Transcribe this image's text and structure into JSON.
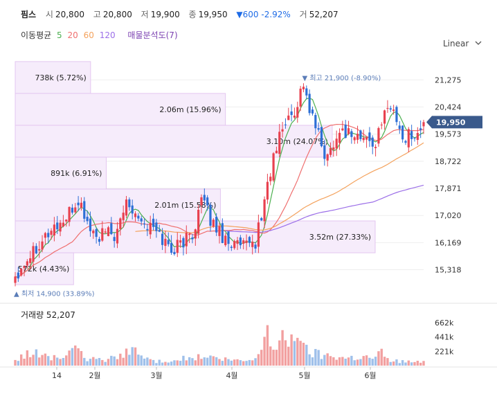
{
  "header": {
    "name": "핌스",
    "open_label": "시",
    "open": "20,800",
    "high_label": "고",
    "high": "20,800",
    "low_label": "저",
    "low": "19,900",
    "close_label": "종",
    "close": "19,950",
    "change": "▼600 -2.92%",
    "vol_label": "거",
    "volume": "52,207"
  },
  "ma_legend": {
    "label": "이동평균",
    "p5": "5",
    "p20": "20",
    "p60": "60",
    "p120": "120",
    "vp_label": "매물분석도(7)"
  },
  "scale_mode": "Linear",
  "volume_title": "거래량 52,207",
  "colors": {
    "up": "#e8414f",
    "down": "#2d6fd6",
    "ma5": "#4caf50",
    "ma20": "#ef6f6f",
    "ma60": "#f4a25d",
    "ma120": "#9b6ee8",
    "vp": "#f6ecfb"
  },
  "chart_data": {
    "type": "candlestick",
    "y_ticks": [
      "21,275",
      "20,424",
      "19,573",
      "18,722",
      "17,871",
      "17,020",
      "16,169",
      "15,318"
    ],
    "y_range": [
      14700,
      22000
    ],
    "x_labels": [
      "14",
      "2월",
      "3월",
      "4월",
      "5월",
      "6월"
    ],
    "last_price": "19,950",
    "max_annotation": "최고 21,900 (-8.90%)",
    "min_annotation": "최저 14,900 (33.89%)",
    "volume_ticks": [
      "662k",
      "441k",
      "221k"
    ],
    "volume_profile": [
      {
        "label": "738k (5.72%)",
        "low": 20850,
        "high": 21850
      },
      {
        "label": "2.06m (15.96%)",
        "low": 19850,
        "high": 20850
      },
      {
        "label": "3.10m (24.07%)",
        "low": 18850,
        "high": 19850
      },
      {
        "label": "891k (6.91%)",
        "low": 17850,
        "high": 18850
      },
      {
        "label": "2.01m (15.58%)",
        "low": 16850,
        "high": 17850
      },
      {
        "label": "3.52m (27.33%)",
        "low": 15850,
        "high": 16850
      },
      {
        "label": "572k (4.43%)",
        "low": 14850,
        "high": 15850
      }
    ],
    "anchors": [
      [
        0,
        15150
      ],
      [
        4,
        15700
      ],
      [
        8,
        16200
      ],
      [
        13,
        16650
      ],
      [
        17,
        16900
      ],
      [
        21,
        17500
      ],
      [
        24,
        16800
      ],
      [
        27,
        16300
      ],
      [
        30,
        16450
      ],
      [
        34,
        16400
      ],
      [
        37,
        17500
      ],
      [
        40,
        17200
      ],
      [
        43,
        16750
      ],
      [
        46,
        16600
      ],
      [
        49,
        16300
      ],
      [
        52,
        15950
      ],
      [
        55,
        16150
      ],
      [
        59,
        16450
      ],
      [
        62,
        17500
      ],
      [
        65,
        16900
      ],
      [
        69,
        16400
      ],
      [
        73,
        16100
      ],
      [
        77,
        16000
      ],
      [
        80,
        16200
      ],
      [
        82,
        17000
      ],
      [
        84,
        18000
      ],
      [
        86,
        18800
      ],
      [
        89,
        19800
      ],
      [
        93,
        20300
      ],
      [
        96,
        21200
      ],
      [
        98,
        20300
      ],
      [
        100,
        19800
      ],
      [
        102,
        19200
      ],
      [
        104,
        18800
      ],
      [
        106,
        19400
      ],
      [
        109,
        19700
      ],
      [
        112,
        19600
      ],
      [
        115,
        19450
      ],
      [
        118,
        19350
      ],
      [
        120,
        19300
      ],
      [
        122,
        19800
      ],
      [
        124,
        20600
      ],
      [
        126,
        20300
      ],
      [
        128,
        19700
      ],
      [
        130,
        19400
      ],
      [
        132,
        19650
      ],
      [
        134,
        19500
      ],
      [
        136,
        19950
      ]
    ],
    "vol_anchors": [
      [
        0,
        90
      ],
      [
        5,
        200
      ],
      [
        10,
        150
      ],
      [
        15,
        120
      ],
      [
        20,
        220
      ],
      [
        25,
        90
      ],
      [
        30,
        100
      ],
      [
        35,
        130
      ],
      [
        38,
        300
      ],
      [
        42,
        140
      ],
      [
        47,
        60
      ],
      [
        52,
        90
      ],
      [
        57,
        110
      ],
      [
        62,
        130
      ],
      [
        66,
        120
      ],
      [
        70,
        90
      ],
      [
        75,
        70
      ],
      [
        80,
        90
      ],
      [
        82,
        330
      ],
      [
        84,
        650
      ],
      [
        86,
        220
      ],
      [
        89,
        400
      ],
      [
        92,
        420
      ],
      [
        94,
        670
      ],
      [
        96,
        260
      ],
      [
        99,
        210
      ],
      [
        102,
        160
      ],
      [
        106,
        160
      ],
      [
        110,
        120
      ],
      [
        115,
        140
      ],
      [
        120,
        120
      ],
      [
        122,
        220
      ],
      [
        124,
        90
      ],
      [
        128,
        70
      ],
      [
        132,
        60
      ],
      [
        136,
        52
      ]
    ]
  }
}
